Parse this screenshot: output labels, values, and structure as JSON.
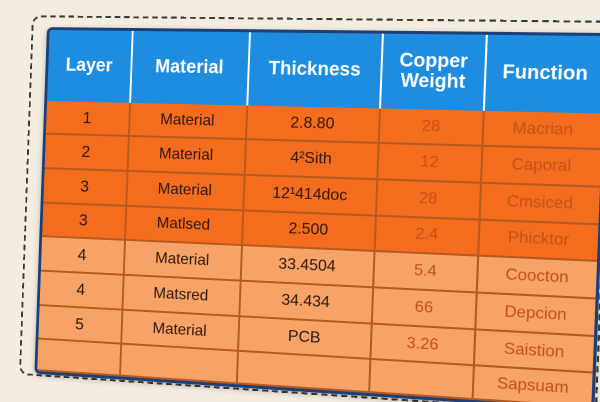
{
  "table": {
    "headers": [
      "Layer",
      "Material",
      "Thickness",
      "Copper Weight",
      "Function"
    ],
    "rows": [
      {
        "layer": "1",
        "material": "Material",
        "thickness": "2.8.80",
        "copper": "28",
        "function": "Macrian",
        "tone": "dark"
      },
      {
        "layer": "2",
        "material": "Material",
        "thickness": "4²Sith",
        "copper": "12",
        "function": "Caporal",
        "tone": "dark"
      },
      {
        "layer": "3",
        "material": "Material",
        "thickness": "12¹414doc",
        "copper": "28",
        "function": "Cmsiced",
        "tone": "dark"
      },
      {
        "layer": "3",
        "material": "Matlsed",
        "thickness": "2.500",
        "copper": "2.4",
        "function": "Phicktor",
        "tone": "dark"
      },
      {
        "layer": "4",
        "material": "Material",
        "thickness": "33.4504",
        "copper": "5.4",
        "function": "Coocton",
        "tone": "light"
      },
      {
        "layer": "4",
        "material": "Matsred",
        "thickness": "34.434",
        "copper": "66",
        "function": "Depcion",
        "tone": "light"
      },
      {
        "layer": "5",
        "material": "Material",
        "thickness": "PCB",
        "copper": "3.26",
        "function": "Saistion",
        "tone": "light"
      },
      {
        "layer": "",
        "material": "",
        "thickness": "",
        "copper": "",
        "function": "Sapsuam",
        "tone": "light"
      }
    ]
  },
  "colors": {
    "header_bg": "#1e8de0",
    "row_dark": "#f46c1e",
    "row_light": "#f7a266",
    "border": "#1c3f78"
  }
}
